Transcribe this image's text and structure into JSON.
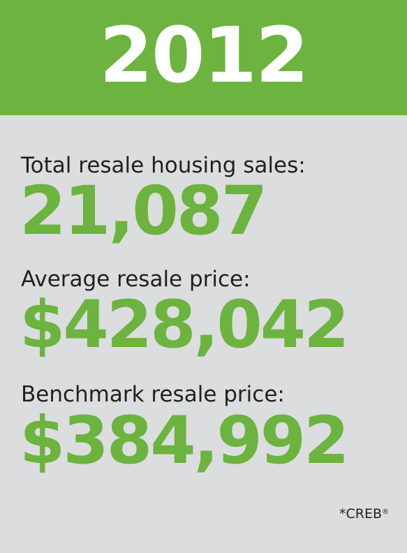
{
  "header": {
    "year": "2012"
  },
  "stats": [
    {
      "label": "Total resale housing sales:",
      "value": "21,087"
    },
    {
      "label": "Average resale price:",
      "value": "$428,042"
    },
    {
      "label": "Benchmark resale price:",
      "value": "$384,992"
    }
  ],
  "footer": {
    "source": "*CREB",
    "source_mark": "®"
  },
  "colors": {
    "accent_green": "#6cb33f",
    "background_gray": "#dcdddf",
    "text_dark": "#231f20"
  }
}
